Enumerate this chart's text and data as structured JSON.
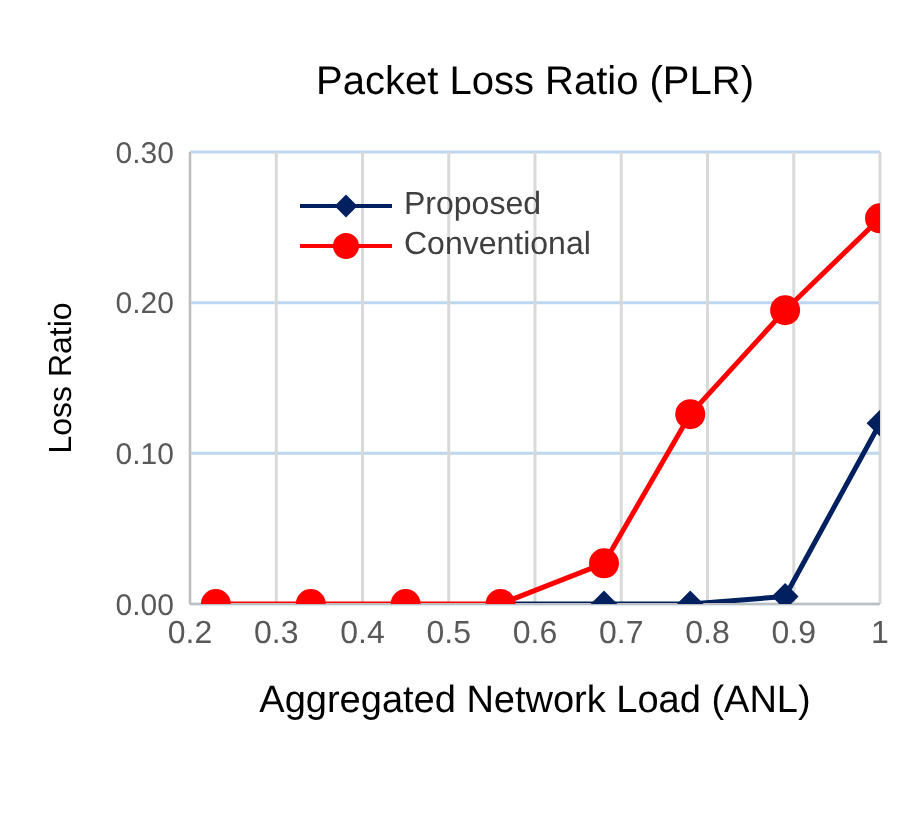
{
  "chart_data": {
    "type": "line",
    "title": "Packet Loss Ratio (PLR)",
    "xlabel": "Aggregated Network Load (ANL)",
    "ylabel": "Loss Ratio",
    "x": [
      0.23,
      0.34,
      0.45,
      0.56,
      0.68,
      0.78,
      0.89,
      1.0
    ],
    "series": [
      {
        "name": "Proposed",
        "color": "#002060",
        "marker": "diamond",
        "values": [
          null,
          null,
          null,
          0,
          0,
          0,
          0.005,
          0.12
        ]
      },
      {
        "name": "Conventional",
        "color": "#ff0000",
        "marker": "circle",
        "values": [
          0,
          0,
          0,
          0,
          0.027,
          0.126,
          0.195,
          0.256
        ]
      }
    ],
    "xlim": [
      0.2,
      1
    ],
    "xticks": [
      0.2,
      0.3,
      0.4,
      0.5,
      0.6,
      0.7,
      0.8,
      0.9,
      1
    ],
    "ylim": [
      0,
      0.3
    ],
    "yticks": [
      {
        "value": 0,
        "label": "0.00"
      },
      {
        "value": 0.1,
        "label": "0.10"
      },
      {
        "value": 0.2,
        "label": "0.20"
      },
      {
        "value": 0.3,
        "label": "0.30"
      }
    ],
    "grid": true,
    "legend": "top left",
    "line_style": "solid"
  }
}
